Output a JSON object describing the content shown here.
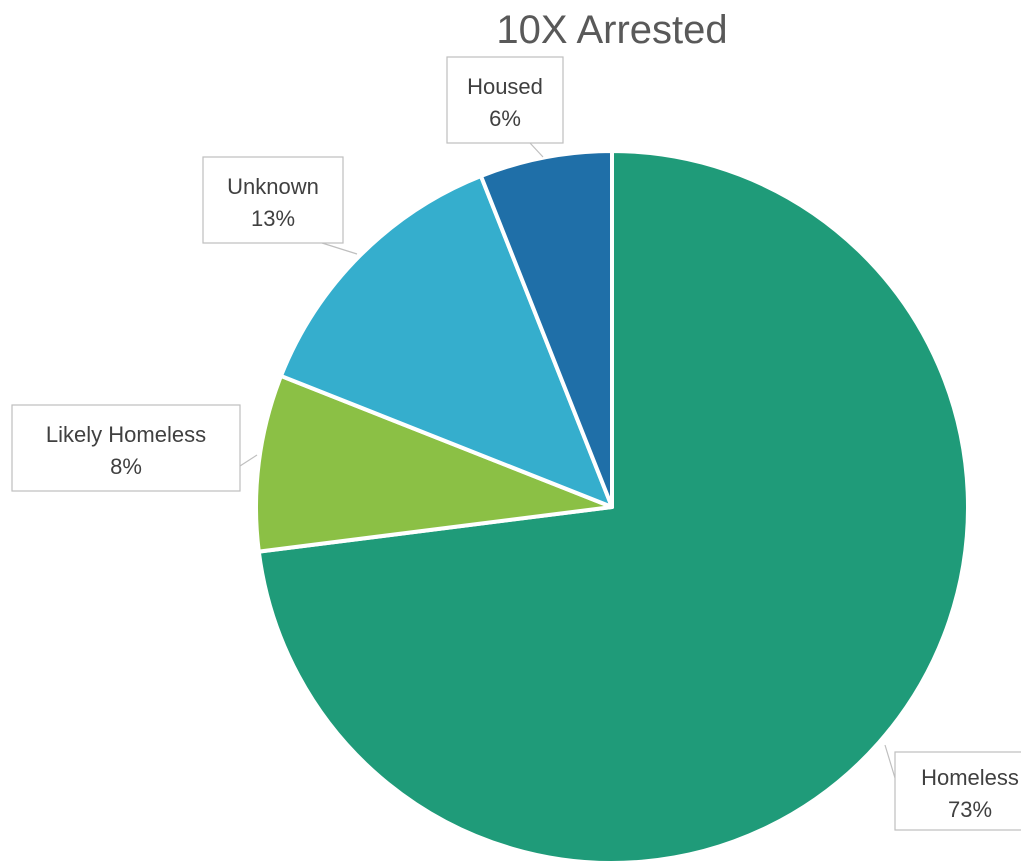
{
  "chart_data": {
    "type": "pie",
    "title": "10X Arrested",
    "slices": [
      {
        "name": "Homeless",
        "label": "73%",
        "value": 73,
        "color": "#1f9b79"
      },
      {
        "name": "Likely Homeless",
        "label": "8%",
        "value": 8,
        "color": "#8bc045"
      },
      {
        "name": "Unknown",
        "label": "13%",
        "value": 13,
        "color": "#35aecd"
      },
      {
        "name": "Housed",
        "label": "6%",
        "value": 6,
        "color": "#1f6fa8"
      }
    ],
    "start_angle_deg": 0,
    "direction": "clockwise",
    "legend": "none",
    "data_labels": "callouts"
  }
}
